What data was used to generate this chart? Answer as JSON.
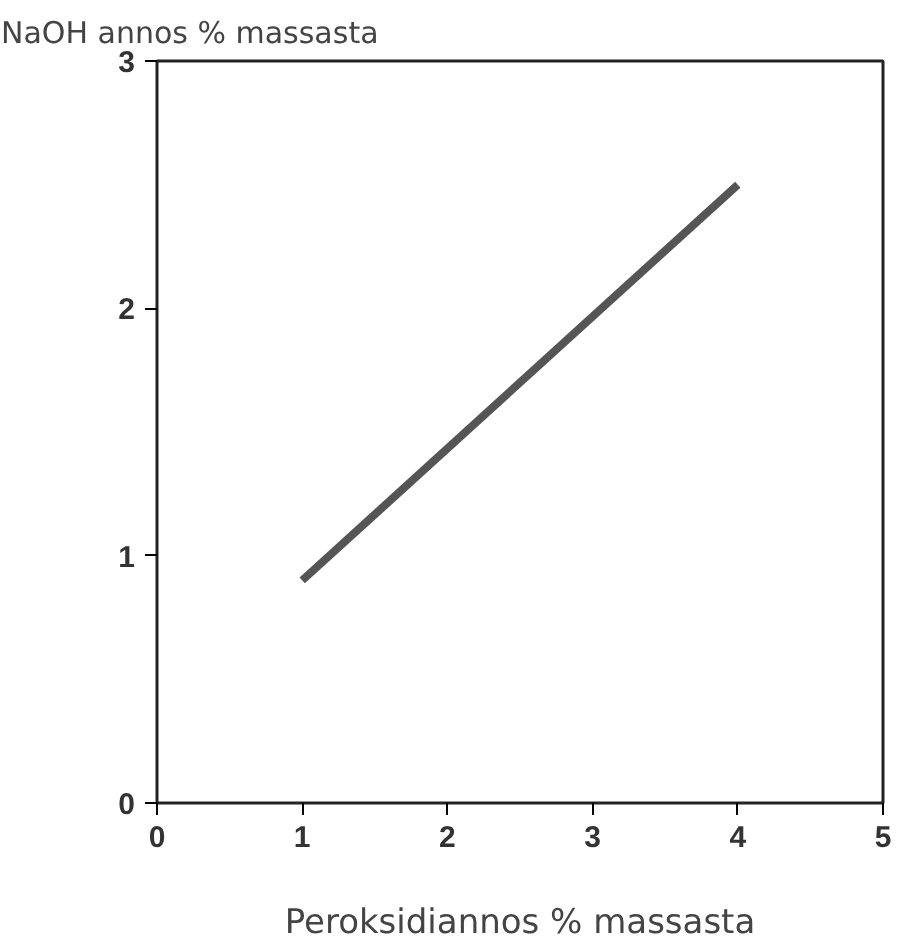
{
  "chart_data": {
    "type": "line",
    "ylabel": "NaOH annos % massasta",
    "xlabel": "Peroksidiannos % massasta",
    "x": [
      1,
      4
    ],
    "series": [
      {
        "color": "#555555",
        "values": [
          0.9,
          2.5
        ]
      }
    ],
    "xlim": [
      0,
      5
    ],
    "ylim": [
      0,
      3
    ],
    "xticks": [
      0,
      1,
      2,
      3,
      4,
      5
    ],
    "yticks": [
      0,
      1,
      2,
      3
    ],
    "grid": false,
    "marker": "none",
    "line_style": "solid"
  }
}
